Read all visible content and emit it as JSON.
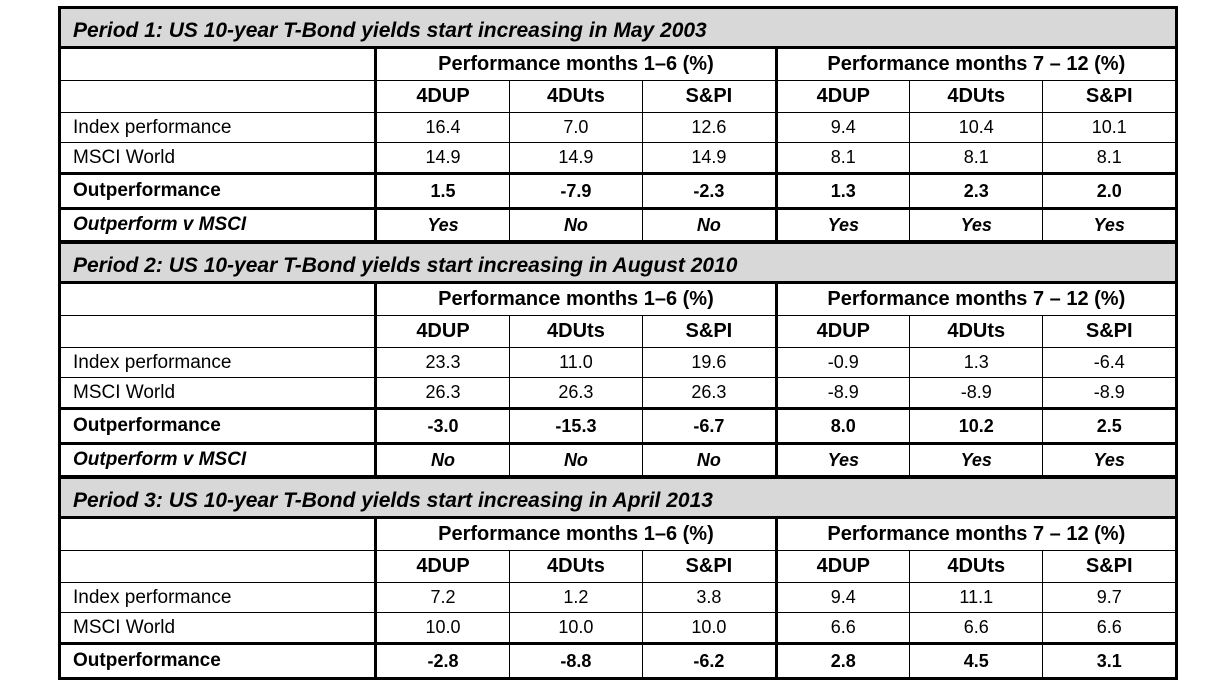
{
  "group_headers": {
    "first": "Performance months 1–6 (%)",
    "second": "Performance months 7 – 12 (%)"
  },
  "column_headers": [
    "4DUP",
    "4DUts",
    "S&PI",
    "4DUP",
    "4DUts",
    "S&PI"
  ],
  "row_labels": {
    "index": "Index performance",
    "msci": "MSCI World",
    "outperformance": "Outperformance",
    "verdict": "Outperform v MSCI"
  },
  "periods": [
    {
      "title": "Period 1: US 10-year T-Bond yields start increasing in May 2003",
      "index": [
        "16.4",
        "7.0",
        "12.6",
        "9.4",
        "10.4",
        "10.1"
      ],
      "msci": [
        "14.9",
        "14.9",
        "14.9",
        "8.1",
        "8.1",
        "8.1"
      ],
      "outperformance": [
        "1.5",
        "-7.9",
        "-2.3",
        "1.3",
        "2.3",
        "2.0"
      ],
      "verdict": [
        "Yes",
        "No",
        "No",
        "Yes",
        "Yes",
        "Yes"
      ]
    },
    {
      "title": "Period 2: US 10-year T-Bond yields start increasing in August 2010",
      "index": [
        "23.3",
        "11.0",
        "19.6",
        "-0.9",
        "1.3",
        "-6.4"
      ],
      "msci": [
        "26.3",
        "26.3",
        "26.3",
        "-8.9",
        "-8.9",
        "-8.9"
      ],
      "outperformance": [
        "-3.0",
        "-15.3",
        "-6.7",
        "8.0",
        "10.2",
        "2.5"
      ],
      "verdict": [
        "No",
        "No",
        "No",
        "Yes",
        "Yes",
        "Yes"
      ]
    },
    {
      "title": "Period 3: US 10-year T-Bond yields start increasing in April 2013",
      "index": [
        "7.2",
        "1.2",
        "3.8",
        "9.4",
        "11.1",
        "9.7"
      ],
      "msci": [
        "10.0",
        "10.0",
        "10.0",
        "6.6",
        "6.6",
        "6.6"
      ],
      "outperformance": [
        "-2.8",
        "-8.8",
        "-6.2",
        "2.8",
        "4.5",
        "3.1"
      ]
    }
  ]
}
